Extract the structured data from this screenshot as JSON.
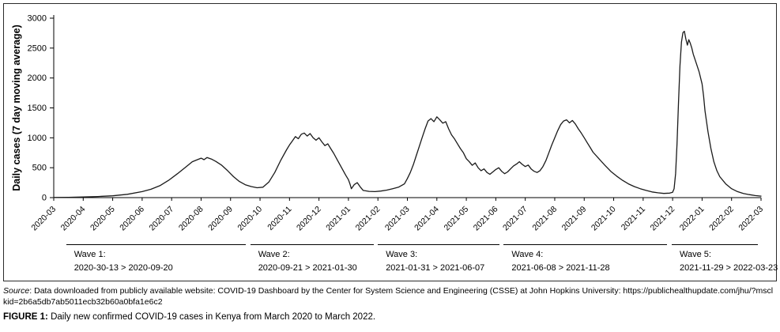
{
  "figure": {
    "source_prefix": "Source",
    "source_text": ": Data downloaded from publicly available website: COVID-19 Dashboard by the Center for System Science and Engineering (CSSE) at John Hopkins University: https://publichealthupdate.com/jhu/?msclkid=2b6a5db7ab5011ecb32b60a0bfa1e6c2",
    "caption_label": "FIGURE 1:",
    "caption_text": "Daily new confirmed COVID-19 cases in Kenya from March 2020 to March 2022."
  },
  "chart_data": {
    "type": "line",
    "title": "",
    "xlabel": "",
    "ylabel": "Daily cases (7 day moving average)",
    "ylim": [
      0,
      3000
    ],
    "yticks": [
      0,
      500,
      1000,
      1500,
      2000,
      2500,
      3000
    ],
    "x_range": [
      0,
      24
    ],
    "x_ticklabels": [
      "2020-03",
      "2020-04",
      "2020-05",
      "2020-06",
      "2020-07",
      "2020-08",
      "2020-09",
      "2020-10",
      "2020-11",
      "2020-12",
      "2021-01",
      "2021-02",
      "2021-03",
      "2021-04",
      "2021-05",
      "2021-06",
      "2021-07",
      "2021-08",
      "2021-09",
      "2021-10",
      "2021-11",
      "2021-12",
      "2022-01",
      "2022-02",
      "2022-03"
    ],
    "grid": false,
    "legend": "none",
    "line_color": "#1a1a1a",
    "series": [
      {
        "name": "Daily cases (7 day moving average)",
        "x_unit": "months since 2020-03",
        "points": [
          [
            0,
            2
          ],
          [
            0.5,
            4
          ],
          [
            1,
            10
          ],
          [
            1.5,
            18
          ],
          [
            2,
            30
          ],
          [
            2.5,
            55
          ],
          [
            3,
            100
          ],
          [
            3.3,
            140
          ],
          [
            3.6,
            200
          ],
          [
            3.9,
            290
          ],
          [
            4.2,
            400
          ],
          [
            4.5,
            520
          ],
          [
            4.7,
            600
          ],
          [
            4.9,
            640
          ],
          [
            5.0,
            660
          ],
          [
            5.1,
            635
          ],
          [
            5.2,
            670
          ],
          [
            5.35,
            645
          ],
          [
            5.5,
            605
          ],
          [
            5.7,
            540
          ],
          [
            5.9,
            450
          ],
          [
            6.1,
            350
          ],
          [
            6.3,
            270
          ],
          [
            6.5,
            215
          ],
          [
            6.7,
            185
          ],
          [
            6.9,
            165
          ],
          [
            7.1,
            175
          ],
          [
            7.3,
            260
          ],
          [
            7.5,
            420
          ],
          [
            7.7,
            620
          ],
          [
            7.9,
            800
          ],
          [
            8.0,
            880
          ],
          [
            8.1,
            950
          ],
          [
            8.2,
            1020
          ],
          [
            8.3,
            985
          ],
          [
            8.4,
            1060
          ],
          [
            8.5,
            1080
          ],
          [
            8.6,
            1030
          ],
          [
            8.7,
            1070
          ],
          [
            8.8,
            1000
          ],
          [
            8.9,
            960
          ],
          [
            9.0,
            1000
          ],
          [
            9.1,
            930
          ],
          [
            9.2,
            870
          ],
          [
            9.3,
            900
          ],
          [
            9.4,
            820
          ],
          [
            9.5,
            740
          ],
          [
            9.6,
            650
          ],
          [
            9.7,
            560
          ],
          [
            9.8,
            470
          ],
          [
            9.9,
            380
          ],
          [
            10.0,
            300
          ],
          [
            10.05,
            230
          ],
          [
            10.1,
            150
          ],
          [
            10.2,
            220
          ],
          [
            10.3,
            250
          ],
          [
            10.4,
            180
          ],
          [
            10.5,
            120
          ],
          [
            10.7,
            105
          ],
          [
            10.9,
            100
          ],
          [
            11.1,
            110
          ],
          [
            11.3,
            125
          ],
          [
            11.5,
            150
          ],
          [
            11.7,
            175
          ],
          [
            11.9,
            230
          ],
          [
            12.0,
            320
          ],
          [
            12.1,
            420
          ],
          [
            12.2,
            550
          ],
          [
            12.3,
            700
          ],
          [
            12.4,
            850
          ],
          [
            12.5,
            1000
          ],
          [
            12.6,
            1150
          ],
          [
            12.7,
            1280
          ],
          [
            12.8,
            1320
          ],
          [
            12.9,
            1270
          ],
          [
            13.0,
            1350
          ],
          [
            13.1,
            1300
          ],
          [
            13.2,
            1245
          ],
          [
            13.3,
            1270
          ],
          [
            13.4,
            1150
          ],
          [
            13.5,
            1050
          ],
          [
            13.6,
            980
          ],
          [
            13.7,
            900
          ],
          [
            13.8,
            820
          ],
          [
            13.9,
            750
          ],
          [
            14.0,
            650
          ],
          [
            14.1,
            600
          ],
          [
            14.2,
            540
          ],
          [
            14.3,
            580
          ],
          [
            14.4,
            500
          ],
          [
            14.5,
            450
          ],
          [
            14.6,
            480
          ],
          [
            14.7,
            420
          ],
          [
            14.8,
            390
          ],
          [
            14.9,
            430
          ],
          [
            15.0,
            470
          ],
          [
            15.1,
            500
          ],
          [
            15.2,
            440
          ],
          [
            15.3,
            400
          ],
          [
            15.4,
            430
          ],
          [
            15.5,
            480
          ],
          [
            15.6,
            530
          ],
          [
            15.7,
            560
          ],
          [
            15.8,
            600
          ],
          [
            15.9,
            555
          ],
          [
            16.0,
            520
          ],
          [
            16.1,
            545
          ],
          [
            16.2,
            480
          ],
          [
            16.3,
            440
          ],
          [
            16.4,
            420
          ],
          [
            16.5,
            450
          ],
          [
            16.6,
            520
          ],
          [
            16.7,
            620
          ],
          [
            16.8,
            750
          ],
          [
            16.9,
            880
          ],
          [
            17.0,
            1000
          ],
          [
            17.1,
            1120
          ],
          [
            17.2,
            1220
          ],
          [
            17.3,
            1280
          ],
          [
            17.4,
            1300
          ],
          [
            17.5,
            1250
          ],
          [
            17.6,
            1290
          ],
          [
            17.7,
            1230
          ],
          [
            17.8,
            1150
          ],
          [
            17.9,
            1080
          ],
          [
            18.0,
            1000
          ],
          [
            18.1,
            920
          ],
          [
            18.2,
            840
          ],
          [
            18.3,
            760
          ],
          [
            18.5,
            650
          ],
          [
            18.7,
            540
          ],
          [
            18.9,
            440
          ],
          [
            19.1,
            360
          ],
          [
            19.3,
            290
          ],
          [
            19.5,
            230
          ],
          [
            19.7,
            185
          ],
          [
            19.9,
            150
          ],
          [
            20.1,
            120
          ],
          [
            20.3,
            95
          ],
          [
            20.5,
            80
          ],
          [
            20.7,
            70
          ],
          [
            20.9,
            75
          ],
          [
            21.0,
            90
          ],
          [
            21.05,
            150
          ],
          [
            21.1,
            400
          ],
          [
            21.15,
            900
          ],
          [
            21.2,
            1600
          ],
          [
            21.25,
            2200
          ],
          [
            21.3,
            2600
          ],
          [
            21.35,
            2760
          ],
          [
            21.4,
            2780
          ],
          [
            21.45,
            2650
          ],
          [
            21.5,
            2550
          ],
          [
            21.55,
            2640
          ],
          [
            21.6,
            2580
          ],
          [
            21.65,
            2500
          ],
          [
            21.7,
            2400
          ],
          [
            21.8,
            2250
          ],
          [
            21.9,
            2100
          ],
          [
            22.0,
            1900
          ],
          [
            22.05,
            1700
          ],
          [
            22.1,
            1450
          ],
          [
            22.2,
            1100
          ],
          [
            22.3,
            820
          ],
          [
            22.4,
            600
          ],
          [
            22.5,
            450
          ],
          [
            22.6,
            350
          ],
          [
            22.8,
            230
          ],
          [
            23.0,
            150
          ],
          [
            23.2,
            100
          ],
          [
            23.4,
            70
          ],
          [
            23.6,
            50
          ],
          [
            23.8,
            35
          ],
          [
            24.0,
            25
          ]
        ]
      }
    ],
    "waves": [
      {
        "label": "Wave 1:",
        "range": "2020-30-13 > 2020-09-20",
        "x_start": 0.42,
        "x_end": 6.63
      },
      {
        "label": "Wave 2:",
        "range": "2020-09-21 > 2021-01-30",
        "x_start": 6.67,
        "x_end": 10.97
      },
      {
        "label": "Wave 3:",
        "range": "2021-01-31 > 2021-06-07",
        "x_start": 11.0,
        "x_end": 15.23
      },
      {
        "label": "Wave 4:",
        "range": "2021-06-08 > 2021-11-28",
        "x_start": 15.27,
        "x_end": 20.93
      },
      {
        "label": "Wave 5:",
        "range": "2021-11-29 > 2022-03-23",
        "x_start": 20.97,
        "x_end": 24.0
      }
    ]
  }
}
